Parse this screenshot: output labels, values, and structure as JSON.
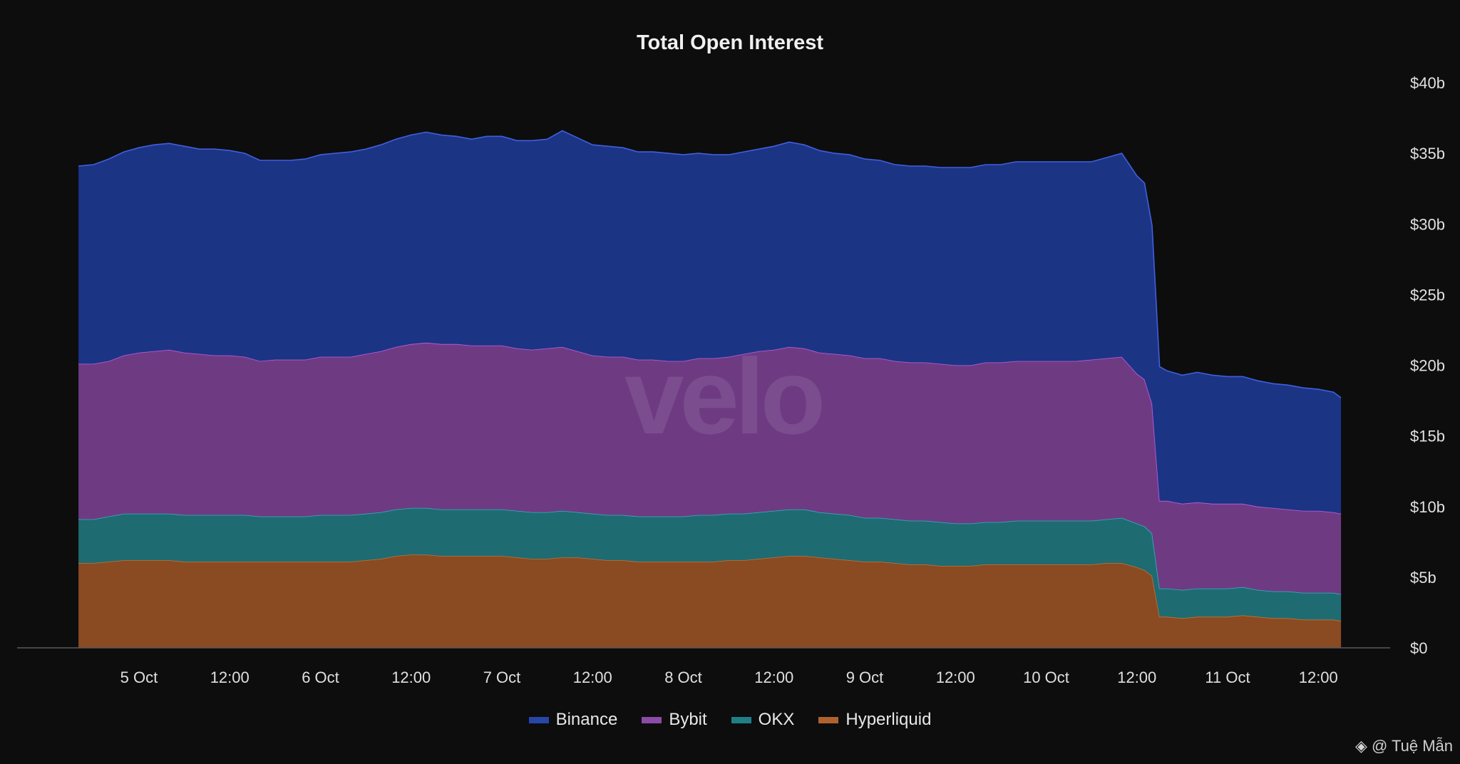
{
  "chart_data": {
    "type": "area",
    "stacked": true,
    "title": "Total Open Interest",
    "xlabel": "",
    "ylabel": "",
    "y_axis_side": "right",
    "ylim": [
      0,
      40
    ],
    "y_ticks": [
      0,
      5,
      10,
      15,
      20,
      25,
      30,
      35,
      40
    ],
    "y_tick_labels": [
      "$0",
      "$5b",
      "$10b",
      "$15b",
      "$20b",
      "$25b",
      "$30b",
      "$35b",
      "$40b"
    ],
    "x_unit": "hours since 5 Oct 00:00",
    "xlim": [
      -16.5,
      165.5
    ],
    "x_ticks": [
      0,
      12,
      24,
      36,
      48,
      60,
      72,
      84,
      96,
      108,
      120,
      132,
      144,
      156
    ],
    "x_tick_labels": [
      "5 Oct",
      "12:00",
      "6 Oct",
      "12:00",
      "7 Oct",
      "12:00",
      "8 Oct",
      "12:00",
      "9 Oct",
      "12:00",
      "10 Oct",
      "12:00",
      "11 Oct",
      "12:00"
    ],
    "x": [
      -8,
      -6,
      -4,
      -2,
      0,
      2,
      4,
      6,
      8,
      10,
      12,
      14,
      16,
      18,
      20,
      22,
      24,
      26,
      28,
      30,
      32,
      34,
      36,
      38,
      40,
      42,
      44,
      46,
      48,
      50,
      52,
      54,
      56,
      58,
      60,
      62,
      64,
      66,
      68,
      70,
      72,
      74,
      76,
      78,
      80,
      82,
      84,
      86,
      88,
      90,
      92,
      94,
      96,
      98,
      100,
      102,
      104,
      106,
      108,
      110,
      112,
      114,
      116,
      118,
      120,
      122,
      124,
      126,
      128,
      130,
      132,
      133,
      134,
      135,
      136,
      138,
      140,
      142,
      144,
      146,
      148,
      150,
      152,
      154,
      156,
      158,
      159
    ],
    "series": [
      {
        "name": "Hyperliquid",
        "color": "#8a4a22",
        "values": [
          6.0,
          6.0,
          6.1,
          6.2,
          6.2,
          6.2,
          6.2,
          6.1,
          6.1,
          6.1,
          6.1,
          6.1,
          6.1,
          6.1,
          6.1,
          6.1,
          6.1,
          6.1,
          6.1,
          6.2,
          6.3,
          6.5,
          6.6,
          6.6,
          6.5,
          6.5,
          6.5,
          6.5,
          6.5,
          6.4,
          6.3,
          6.3,
          6.4,
          6.4,
          6.3,
          6.2,
          6.2,
          6.1,
          6.1,
          6.1,
          6.1,
          6.1,
          6.1,
          6.2,
          6.2,
          6.3,
          6.4,
          6.5,
          6.5,
          6.4,
          6.3,
          6.2,
          6.1,
          6.1,
          6.0,
          5.9,
          5.9,
          5.8,
          5.8,
          5.8,
          5.9,
          5.9,
          5.9,
          5.9,
          5.9,
          5.9,
          5.9,
          5.9,
          6.0,
          6.0,
          5.7,
          5.5,
          5.1,
          2.2,
          2.2,
          2.1,
          2.2,
          2.2,
          2.2,
          2.3,
          2.2,
          2.1,
          2.1,
          2.0,
          2.0,
          2.0,
          1.9
        ]
      },
      {
        "name": "OKX",
        "color": "#1f6b72",
        "values": [
          3.1,
          3.1,
          3.2,
          3.3,
          3.3,
          3.3,
          3.3,
          3.3,
          3.3,
          3.3,
          3.3,
          3.3,
          3.2,
          3.2,
          3.2,
          3.2,
          3.3,
          3.3,
          3.3,
          3.3,
          3.3,
          3.3,
          3.3,
          3.3,
          3.3,
          3.3,
          3.3,
          3.3,
          3.3,
          3.3,
          3.3,
          3.3,
          3.3,
          3.2,
          3.2,
          3.2,
          3.2,
          3.2,
          3.2,
          3.2,
          3.2,
          3.3,
          3.3,
          3.3,
          3.3,
          3.3,
          3.3,
          3.3,
          3.3,
          3.2,
          3.2,
          3.2,
          3.1,
          3.1,
          3.1,
          3.1,
          3.1,
          3.1,
          3.0,
          3.0,
          3.0,
          3.0,
          3.1,
          3.1,
          3.1,
          3.1,
          3.1,
          3.1,
          3.1,
          3.2,
          3.1,
          3.1,
          3.0,
          2.0,
          2.0,
          2.0,
          2.0,
          2.0,
          2.0,
          2.0,
          1.9,
          1.9,
          1.9,
          1.9,
          1.9,
          1.9,
          1.9
        ]
      },
      {
        "name": "Bybit",
        "color": "#6e3b83",
        "values": [
          11.0,
          11.0,
          11.0,
          11.2,
          11.4,
          11.5,
          11.6,
          11.5,
          11.4,
          11.3,
          11.3,
          11.2,
          11.0,
          11.1,
          11.1,
          11.1,
          11.2,
          11.2,
          11.2,
          11.3,
          11.4,
          11.5,
          11.6,
          11.7,
          11.7,
          11.7,
          11.6,
          11.6,
          11.6,
          11.5,
          11.5,
          11.6,
          11.6,
          11.4,
          11.2,
          11.2,
          11.2,
          11.1,
          11.1,
          11.0,
          11.0,
          11.1,
          11.1,
          11.1,
          11.3,
          11.4,
          11.4,
          11.5,
          11.4,
          11.3,
          11.3,
          11.3,
          11.3,
          11.3,
          11.2,
          11.2,
          11.2,
          11.2,
          11.2,
          11.2,
          11.3,
          11.3,
          11.3,
          11.3,
          11.3,
          11.3,
          11.3,
          11.4,
          11.4,
          11.4,
          10.6,
          10.4,
          9.2,
          6.2,
          6.2,
          6.1,
          6.1,
          6.0,
          6.0,
          5.9,
          5.9,
          5.9,
          5.8,
          5.8,
          5.8,
          5.7,
          5.7
        ]
      },
      {
        "name": "Binance",
        "color": "#1c3484",
        "values": [
          14.0,
          14.1,
          14.3,
          14.4,
          14.5,
          14.6,
          14.6,
          14.6,
          14.5,
          14.6,
          14.5,
          14.4,
          14.2,
          14.1,
          14.1,
          14.2,
          14.3,
          14.4,
          14.5,
          14.5,
          14.6,
          14.7,
          14.8,
          14.9,
          14.8,
          14.7,
          14.6,
          14.8,
          14.8,
          14.7,
          14.8,
          14.8,
          15.3,
          15.1,
          14.9,
          14.9,
          14.8,
          14.7,
          14.7,
          14.7,
          14.6,
          14.5,
          14.4,
          14.3,
          14.3,
          14.3,
          14.4,
          14.5,
          14.4,
          14.3,
          14.2,
          14.2,
          14.1,
          14.0,
          13.9,
          13.9,
          13.9,
          13.9,
          14.0,
          14.0,
          14.0,
          14.0,
          14.1,
          14.1,
          14.1,
          14.1,
          14.1,
          14.0,
          14.2,
          14.4,
          14.0,
          13.9,
          12.6,
          9.5,
          9.2,
          9.1,
          9.2,
          9.1,
          9.0,
          9.0,
          8.9,
          8.8,
          8.8,
          8.7,
          8.6,
          8.5,
          8.2
        ]
      }
    ],
    "legend": {
      "position": "bottom",
      "order": [
        "Binance",
        "Bybit",
        "OKX",
        "Hyperliquid"
      ]
    }
  },
  "legend_items": [
    {
      "label": "Binance",
      "color": "#2646a8"
    },
    {
      "label": "Bybit",
      "color": "#8b4ba6"
    },
    {
      "label": "OKX",
      "color": "#1f7f88"
    },
    {
      "label": "Hyperliquid",
      "color": "#b0622c"
    }
  ],
  "watermark": "velo",
  "credit": {
    "icon": "binance-square-icon",
    "text": "@ Tuệ Mẫn"
  }
}
